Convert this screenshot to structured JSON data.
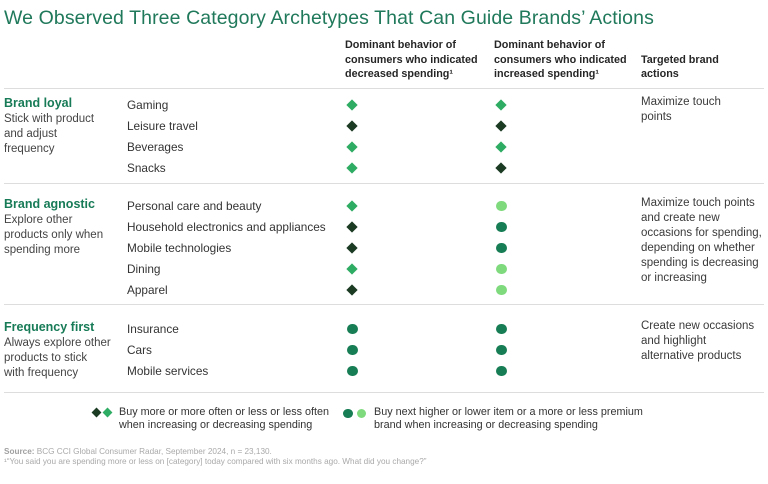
{
  "title": "We Observed Three Category Archetypes That Can Guide Brands’ Actions",
  "colors": {
    "title_green": "#20795B",
    "group_label_green": "#177B57",
    "diamond_green": "#2FAC63",
    "diamond_dark": "#1C3B23",
    "circle_dark": "#177D54",
    "circle_light": "#7EDA7D",
    "divider": "#dddddd",
    "source_gray": "#a9a9a9"
  },
  "columns": {
    "decreased": "Dominant behavior of\nconsumers who indicated\ndecreased spending¹",
    "increased": "Dominant behavior of\nconsumers who indicated\nincreased spending¹",
    "actions": "Targeted brand\nactions"
  },
  "groups": [
    {
      "label": "Brand loyal",
      "desc": "Stick with product\nand adjust\nfrequency",
      "action": "Maximize touch\npoints",
      "rows": [
        {
          "category": "Gaming",
          "dec": "diamond-green",
          "inc": "diamond-green"
        },
        {
          "category": "Leisure travel",
          "dec": "diamond-dark",
          "inc": "diamond-dark"
        },
        {
          "category": "Beverages",
          "dec": "diamond-green",
          "inc": "diamond-green"
        },
        {
          "category": "Snacks",
          "dec": "diamond-green",
          "inc": "diamond-dark"
        }
      ]
    },
    {
      "label": "Brand agnostic",
      "desc": "Explore other\nproducts only when\nspending more",
      "action": "Maximize touch points\nand create new\noccasions for spending,\ndepending on whether\nspending is decreasing\nor increasing",
      "rows": [
        {
          "category": "Personal care and beauty",
          "dec": "diamond-green",
          "inc": "circle-light"
        },
        {
          "category": "Household electronics and appliances",
          "dec": "diamond-dark",
          "inc": "circle-dark"
        },
        {
          "category": "Mobile technologies",
          "dec": "diamond-dark",
          "inc": "circle-dark"
        },
        {
          "category": "Dining",
          "dec": "diamond-green",
          "inc": "circle-light"
        },
        {
          "category": "Apparel",
          "dec": "diamond-dark",
          "inc": "circle-light"
        }
      ]
    },
    {
      "label": "Frequency first",
      "desc": "Always explore other\nproducts to stick\nwith frequency",
      "action": "Create new occasions\nand highlight\nalternative products",
      "rows": [
        {
          "category": "Insurance",
          "dec": "circle-dark",
          "inc": "circle-dark"
        },
        {
          "category": "Cars",
          "dec": "circle-dark",
          "inc": "circle-dark"
        },
        {
          "category": "Mobile services",
          "dec": "circle-dark",
          "inc": "circle-dark"
        }
      ]
    }
  ],
  "legend": [
    {
      "markers": [
        "diamond-dark",
        "diamond-green"
      ],
      "text": "Buy more or more often or less or less often\nwhen increasing or decreasing spending"
    },
    {
      "markers": [
        "circle-dark",
        "circle-light"
      ],
      "text": "Buy next higher or lower item or a more or less premium\nbrand when increasing or decreasing spending"
    }
  ],
  "source": {
    "label": "Source:",
    "text": " BCG CCI Global Consumer Radar, September 2024, n = 23,130.",
    "footnote": "¹“You said you are spending more or less on [category] today compared with six months ago. What did you change?”"
  }
}
